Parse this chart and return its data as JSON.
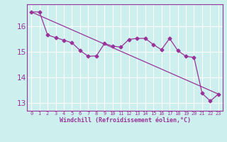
{
  "xlabel": "Windchill (Refroidissement éolien,°C)",
  "background_color": "#cdf0ee",
  "grid_color": "#ffffff",
  "line_color": "#993399",
  "spine_color": "#993399",
  "xlim": [
    -0.5,
    23.5
  ],
  "ylim": [
    12.7,
    16.85
  ],
  "yticks": [
    13,
    14,
    15,
    16
  ],
  "xticks": [
    0,
    1,
    2,
    3,
    4,
    5,
    6,
    7,
    8,
    9,
    10,
    11,
    12,
    13,
    14,
    15,
    16,
    17,
    18,
    19,
    20,
    21,
    22,
    23
  ],
  "series1_x": [
    0,
    1,
    2,
    3,
    4,
    5,
    6,
    7,
    8,
    9,
    10,
    11,
    12,
    13,
    14,
    15,
    16,
    17,
    18,
    19,
    20,
    21,
    22,
    23
  ],
  "series1_y": [
    16.55,
    16.55,
    15.65,
    15.55,
    15.45,
    15.35,
    15.05,
    14.82,
    14.84,
    15.32,
    15.22,
    15.18,
    15.48,
    15.52,
    15.52,
    15.28,
    15.08,
    15.52,
    15.05,
    14.82,
    14.78,
    13.38,
    13.08,
    13.35
  ],
  "series2_x": [
    0,
    23
  ],
  "series2_y": [
    16.55,
    13.35
  ]
}
